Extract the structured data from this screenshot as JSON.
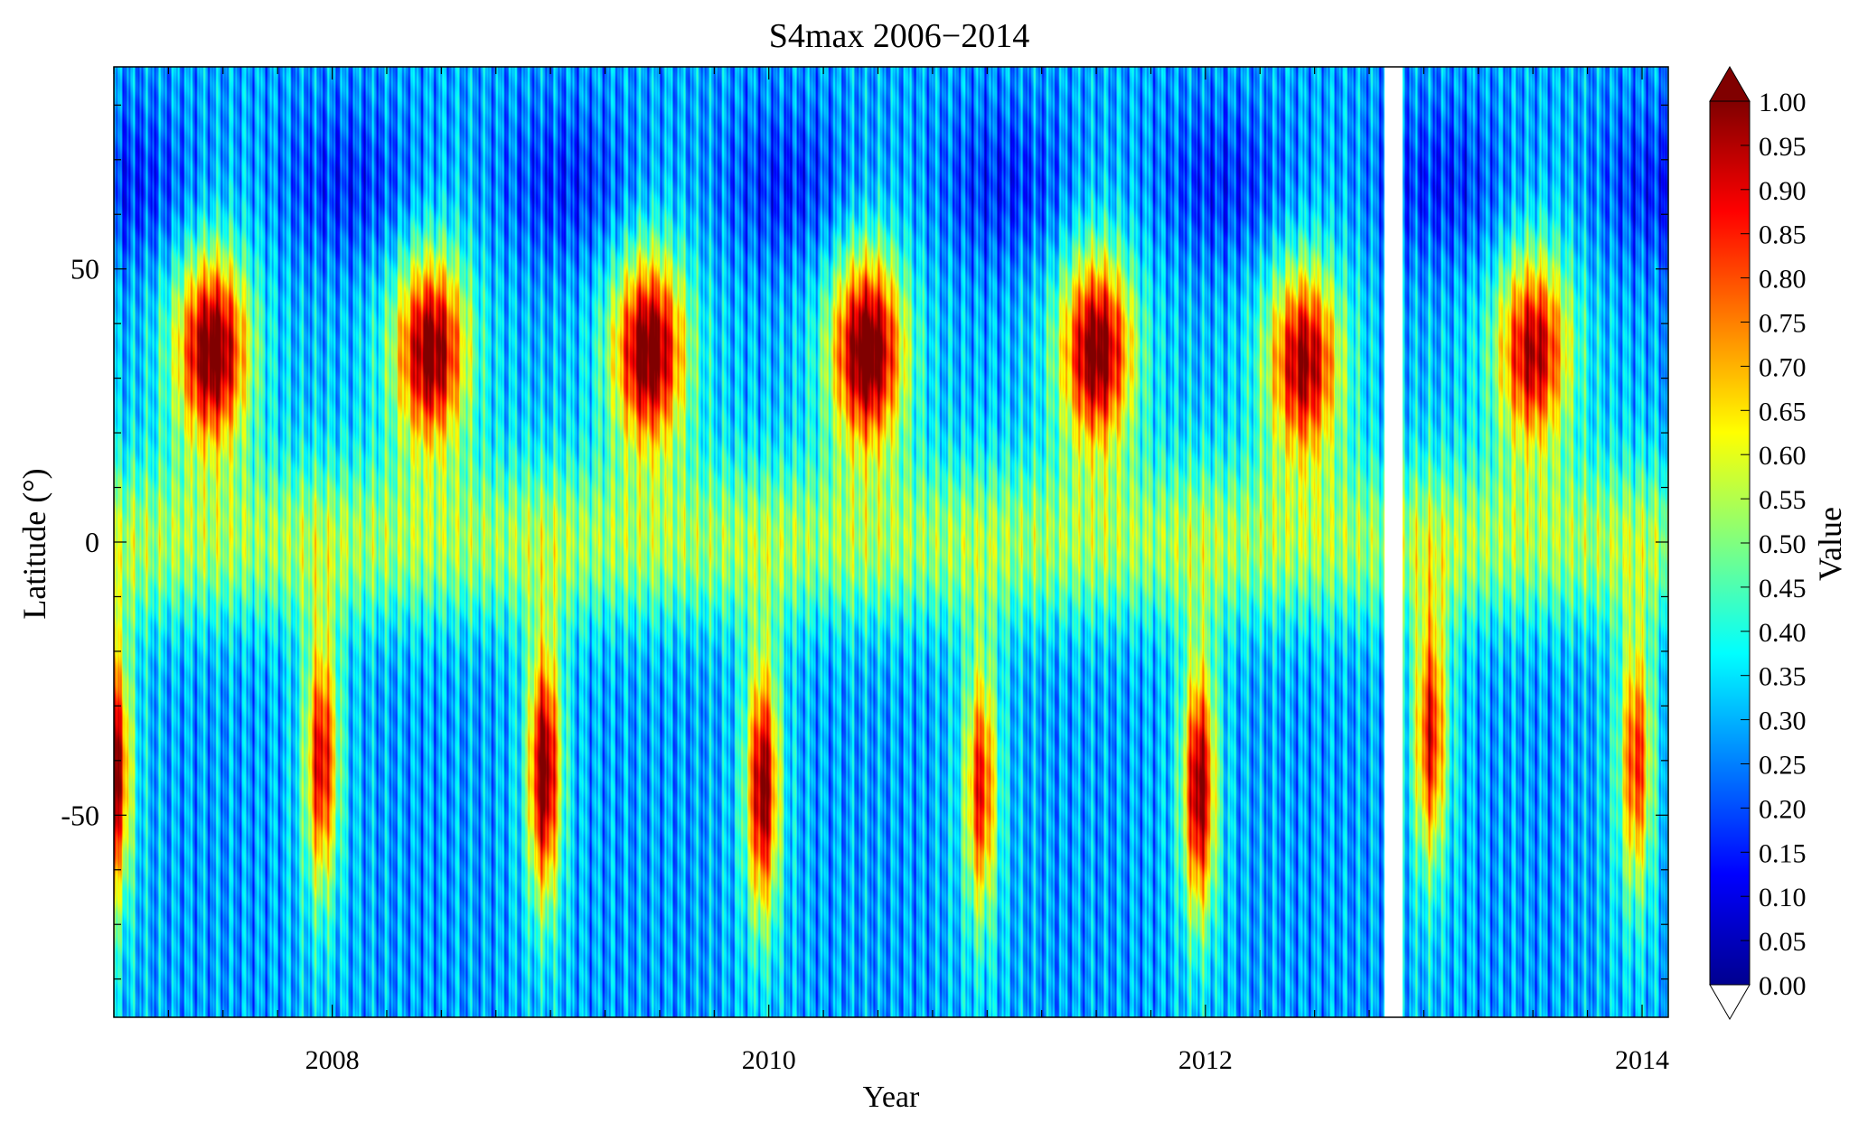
{
  "chart_data": {
    "type": "heatmap",
    "title": "S4max 2006−2014",
    "xlabel": "Year",
    "ylabel": "Latitude (°)",
    "colorbar_label": "Value",
    "xlim": [
      2007.0,
      2014.12
    ],
    "ylim": [
      -87,
      87
    ],
    "x_ticks": [
      2008,
      2010,
      2012,
      2014
    ],
    "x_tick_labels": [
      "2008",
      "2010",
      "2012",
      "2014"
    ],
    "y_ticks": [
      50,
      0,
      -50
    ],
    "y_tick_labels": [
      "50",
      "0",
      "-50"
    ],
    "value_range": [
      0.0,
      1.0
    ],
    "colorbar_ticks": [
      "1.00",
      "0.95",
      "0.90",
      "0.85",
      "0.80",
      "0.75",
      "0.70",
      "0.65",
      "0.60",
      "0.55",
      "0.50",
      "0.45",
      "0.40",
      "0.35",
      "0.30",
      "0.25",
      "0.20",
      "0.15",
      "0.10",
      "0.05",
      "0.00"
    ],
    "colormap": "jet",
    "colormap_stops": [
      "#00008f",
      "#0000ff",
      "#00ffff",
      "#ffff00",
      "#ff0000",
      "#800000"
    ],
    "colorbar_extend": "max",
    "data_gap": [
      2012.82,
      2012.9
    ],
    "background_level": 0.28,
    "equatorial_band": {
      "level": 0.5,
      "lat_center": 0,
      "lat_width": 15
    },
    "northern_low_band": {
      "level": 0.15,
      "lat_center": 65,
      "lat_width": 15
    },
    "blobs": [
      {
        "x": 2007.45,
        "lat": 35,
        "peak": 0.9,
        "hemisphere": "north"
      },
      {
        "x": 2008.45,
        "lat": 35,
        "peak": 0.87,
        "hemisphere": "north"
      },
      {
        "x": 2009.45,
        "lat": 35,
        "peak": 0.9,
        "hemisphere": "north"
      },
      {
        "x": 2010.45,
        "lat": 35,
        "peak": 0.93,
        "hemisphere": "north"
      },
      {
        "x": 2011.5,
        "lat": 35,
        "peak": 0.88,
        "hemisphere": "north"
      },
      {
        "x": 2012.45,
        "lat": 33,
        "peak": 0.82,
        "hemisphere": "north"
      },
      {
        "x": 2013.5,
        "lat": 35,
        "peak": 0.8,
        "hemisphere": "north"
      },
      {
        "x": 2007.0,
        "lat": -42,
        "peak": 0.85,
        "hemisphere": "south"
      },
      {
        "x": 2007.95,
        "lat": -40,
        "peak": 0.75,
        "hemisphere": "south"
      },
      {
        "x": 2008.97,
        "lat": -42,
        "peak": 0.88,
        "hemisphere": "south"
      },
      {
        "x": 2009.97,
        "lat": -45,
        "peak": 0.85,
        "hemisphere": "south"
      },
      {
        "x": 2010.97,
        "lat": -45,
        "peak": 0.7,
        "hemisphere": "south"
      },
      {
        "x": 2011.97,
        "lat": -45,
        "peak": 0.85,
        "hemisphere": "south"
      },
      {
        "x": 2013.03,
        "lat": -35,
        "peak": 0.72,
        "hemisphere": "south"
      },
      {
        "x": 2013.97,
        "lat": -40,
        "peak": 0.68,
        "hemisphere": "south"
      }
    ]
  }
}
